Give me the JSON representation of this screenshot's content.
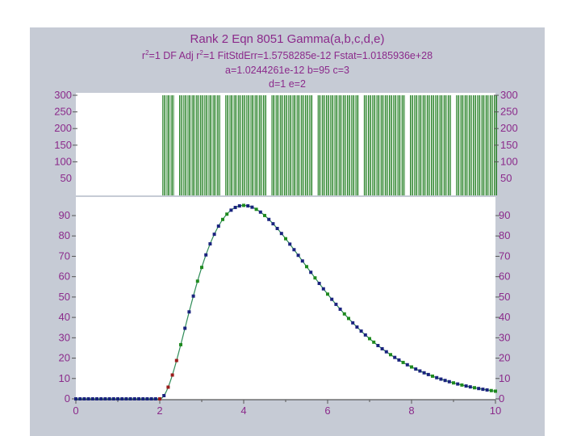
{
  "header": {
    "title": "Rank 2  Eqn 8051  Gamma(a,b,c,d,e)",
    "stats_r2_prefix": "r",
    "stats_r2_sup": "2",
    "stats_r2_value": "=1  DF Adj r",
    "stats_adj_sup": "2",
    "stats_rest": "=1  FitStdErr=1.5758285e-12  Fstat=1.0185936e+28",
    "params_line1": "a=1.0244261e-12 b=95 c=3",
    "params_line2": "d=1 e=2"
  },
  "colors": {
    "panel": "#c6cbd5",
    "title": "#8b2a8b",
    "curve": "#2e8b57",
    "points_blue": "#1a237e",
    "points_green": "#1f8a1f",
    "points_red": "#9b1b1b",
    "residual_bars": "#1a7a1a"
  },
  "chart_data": [
    {
      "type": "line",
      "name": "fit-and-data",
      "x_ticks": [
        "0",
        "2",
        "4",
        "6",
        "8",
        "10"
      ],
      "y_ticks": [
        "0",
        "10",
        "20",
        "30",
        "40",
        "50",
        "60",
        "70",
        "80",
        "90"
      ],
      "xlim": [
        0,
        10
      ],
      "ylim": [
        0,
        95
      ],
      "model": {
        "a": 1.0244261e-12,
        "b": 95,
        "c": 3,
        "d": 1,
        "e": 2
      },
      "x_start": 0,
      "x_end": 10,
      "x_step": 0.1,
      "red_points_x": [
        2.0,
        2.2,
        2.3,
        2.4
      ]
    },
    {
      "type": "bar",
      "name": "residuals",
      "y_ticks": [
        "300",
        "250",
        "200",
        "150",
        "100",
        "50"
      ],
      "ylim": [
        0,
        300
      ],
      "bar_value": 300
    }
  ]
}
